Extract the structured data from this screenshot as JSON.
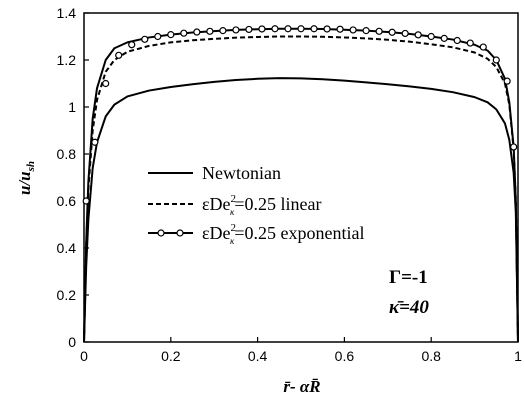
{
  "chart_data": {
    "type": "line",
    "xlabel": "r̄- αR̄",
    "ylabel": {
      "main": "u/u",
      "sub": "sh"
    },
    "xlim": [
      0,
      1
    ],
    "ylim": [
      0,
      1.4
    ],
    "x_ticks": [
      0,
      0.2,
      0.4,
      0.6,
      0.8,
      1
    ],
    "x_tick_labels": [
      "0",
      "0.2",
      "0.4",
      "0.6",
      "0.8",
      "1"
    ],
    "y_ticks": [
      0,
      0.2,
      0.4,
      0.6,
      0.8,
      1,
      1.2,
      1.4
    ],
    "y_tick_labels": [
      "0",
      "0.2",
      "0.4",
      "0.6",
      "0.8",
      "1",
      "1.2",
      "1.4"
    ],
    "grid": false,
    "legend_position": "center-left",
    "series": [
      {
        "name": "Newtonian",
        "style": "solid",
        "marker": "none",
        "x": [
          0,
          0.005,
          0.01,
          0.02,
          0.03,
          0.05,
          0.07,
          0.1,
          0.15,
          0.2,
          0.25,
          0.3,
          0.35,
          0.4,
          0.45,
          0.5,
          0.55,
          0.6,
          0.65,
          0.7,
          0.75,
          0.8,
          0.85,
          0.9,
          0.93,
          0.95,
          0.97,
          0.98,
          0.99,
          0.995,
          1
        ],
        "y": [
          0,
          0.32,
          0.52,
          0.74,
          0.85,
          0.96,
          1.01,
          1.045,
          1.07,
          1.085,
          1.097,
          1.107,
          1.115,
          1.12,
          1.123,
          1.122,
          1.118,
          1.112,
          1.105,
          1.097,
          1.088,
          1.077,
          1.063,
          1.042,
          1.02,
          0.99,
          0.93,
          0.86,
          0.72,
          0.55,
          0
        ]
      },
      {
        "name": "εDe²κ=0.25 linear",
        "style": "dashed",
        "marker": "none",
        "x": [
          0,
          0.005,
          0.01,
          0.02,
          0.03,
          0.05,
          0.07,
          0.1,
          0.15,
          0.2,
          0.25,
          0.3,
          0.35,
          0.4,
          0.45,
          0.5,
          0.55,
          0.6,
          0.65,
          0.7,
          0.75,
          0.8,
          0.85,
          0.9,
          0.93,
          0.95,
          0.97,
          0.98,
          0.99,
          0.995,
          1
        ],
        "y": [
          0,
          0.4,
          0.65,
          0.9,
          1.03,
          1.15,
          1.2,
          1.235,
          1.26,
          1.275,
          1.284,
          1.29,
          1.295,
          1.298,
          1.3,
          1.3,
          1.299,
          1.296,
          1.292,
          1.286,
          1.278,
          1.267,
          1.254,
          1.232,
          1.205,
          1.17,
          1.1,
          1.01,
          0.82,
          0.6,
          0
        ]
      },
      {
        "name": "εDe²κ=0.25 exponential",
        "style": "solid",
        "marker": "circle",
        "x": [
          0,
          0.005,
          0.01,
          0.02,
          0.03,
          0.05,
          0.07,
          0.1,
          0.15,
          0.2,
          0.25,
          0.3,
          0.35,
          0.4,
          0.45,
          0.5,
          0.55,
          0.6,
          0.65,
          0.7,
          0.75,
          0.8,
          0.85,
          0.9,
          0.93,
          0.95,
          0.97,
          0.98,
          0.99,
          0.995,
          1
        ],
        "y": [
          0,
          0.42,
          0.68,
          0.95,
          1.08,
          1.2,
          1.25,
          1.275,
          1.296,
          1.308,
          1.317,
          1.323,
          1.328,
          1.331,
          1.333,
          1.333,
          1.332,
          1.329,
          1.325,
          1.319,
          1.311,
          1.3,
          1.287,
          1.265,
          1.24,
          1.2,
          1.12,
          1.02,
          0.83,
          0.6,
          0
        ],
        "marker_x": [
          0.005,
          0.025,
          0.05,
          0.08,
          0.11,
          0.14,
          0.17,
          0.2,
          0.23,
          0.26,
          0.29,
          0.32,
          0.35,
          0.38,
          0.41,
          0.44,
          0.47,
          0.5,
          0.53,
          0.56,
          0.59,
          0.62,
          0.65,
          0.68,
          0.71,
          0.74,
          0.77,
          0.8,
          0.83,
          0.86,
          0.89,
          0.92,
          0.95,
          0.975,
          0.99
        ],
        "marker_y": [
          0.6,
          0.85,
          1.1,
          1.22,
          1.265,
          1.288,
          1.3,
          1.308,
          1.314,
          1.319,
          1.322,
          1.325,
          1.328,
          1.33,
          1.332,
          1.333,
          1.333,
          1.333,
          1.333,
          1.332,
          1.331,
          1.328,
          1.325,
          1.322,
          1.318,
          1.313,
          1.307,
          1.3,
          1.292,
          1.283,
          1.272,
          1.255,
          1.2,
          1.11,
          0.83
        ]
      }
    ],
    "annotations": {
      "gamma": "Γ=-1",
      "kappa": "κ̄=40"
    }
  },
  "legend": {
    "entry1": "Newtonian",
    "entry2_pre": "εDe",
    "entry2_post": "=0.25 linear",
    "entry3_pre": "εDe",
    "entry3_post": "=0.25 exponential",
    "sup": "2",
    "sub": "κ"
  }
}
